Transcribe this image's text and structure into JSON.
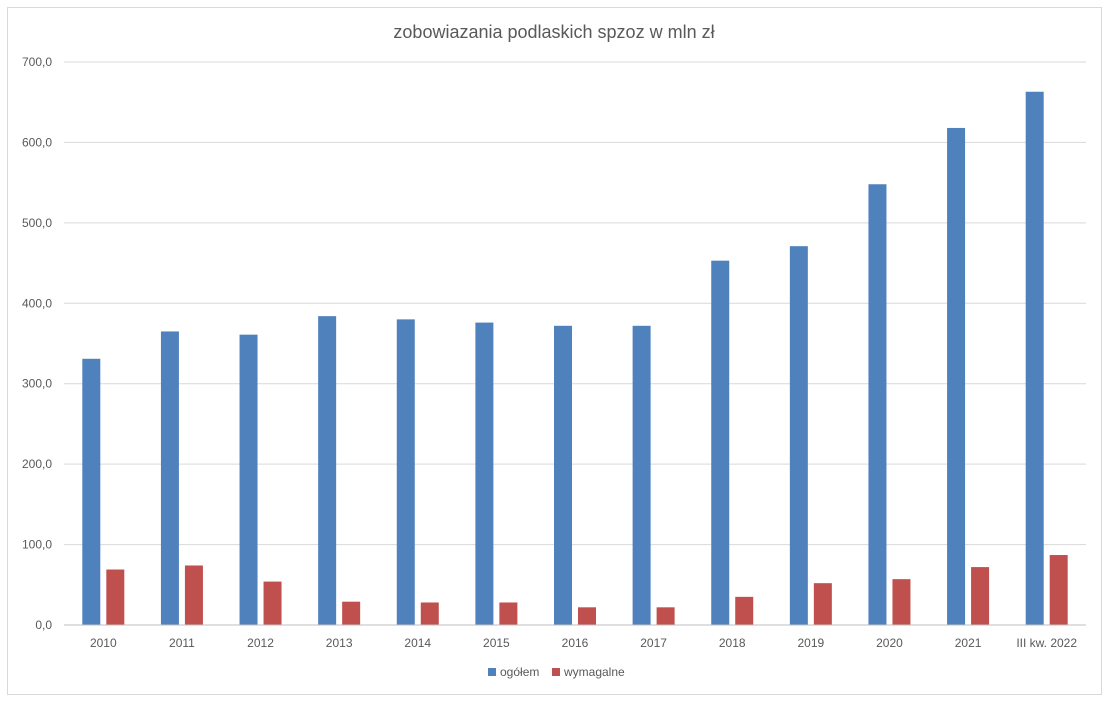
{
  "chart_data": {
    "type": "bar",
    "title": "zobowiazania podlaskich spzoz w mln zł",
    "xlabel": "",
    "ylabel": "",
    "ylim": [
      0,
      700
    ],
    "yticks": [
      "0,0",
      "100,0",
      "200,0",
      "300,0",
      "400,0",
      "500,0",
      "600,0",
      "700,0"
    ],
    "categories": [
      "2010",
      "2011",
      "2012",
      "2013",
      "2014",
      "2015",
      "2016",
      "2017",
      "2018",
      "2019",
      "2020",
      "2021",
      "III kw. 2022"
    ],
    "series": [
      {
        "name": "ogółem",
        "color": "#4f81bd",
        "values": [
          331,
          365,
          361,
          384,
          380,
          376,
          372,
          372,
          453,
          471,
          548,
          618,
          663
        ]
      },
      {
        "name": "wymagalne",
        "color": "#c0504d",
        "values": [
          69,
          74,
          54,
          29,
          28,
          28,
          22,
          22,
          35,
          52,
          57,
          72,
          87
        ]
      }
    ],
    "grid": true,
    "legend_position": "bottom"
  }
}
